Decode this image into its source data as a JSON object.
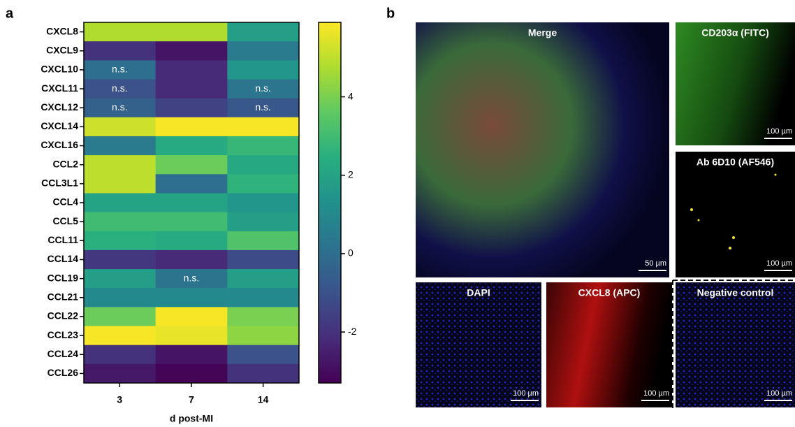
{
  "panel_labels": [
    "a",
    "b"
  ],
  "chart_data": {
    "type": "heatmap",
    "xlabel": "d post-MI",
    "categories": [
      "3",
      "7",
      "14"
    ],
    "rows": [
      "CXCL8",
      "CXCL9",
      "CXCL10",
      "CXCL11",
      "CXCL12",
      "CXCL14",
      "CXCL16",
      "CCL2",
      "CCL3L1",
      "CCL4",
      "CCL5",
      "CCL11",
      "CCL14",
      "CCL19",
      "CCL21",
      "CCL22",
      "CCL23",
      "CCL24",
      "CCL26"
    ],
    "values": [
      [
        4.8,
        4.8,
        1.8
      ],
      [
        -2,
        -2.8,
        0.5
      ],
      [
        0,
        -2.2,
        1.5
      ],
      [
        -1,
        -2.2,
        0.3
      ],
      [
        -0.5,
        -1.5,
        -0.8
      ],
      [
        5.2,
        5.8,
        5.8
      ],
      [
        0.5,
        2.3,
        2.8
      ],
      [
        5,
        3.8,
        2.2
      ],
      [
        5,
        0,
        2.6
      ],
      [
        2,
        2,
        1.5
      ],
      [
        3,
        3,
        1.8
      ],
      [
        2.5,
        2.3,
        3.3
      ],
      [
        -1.8,
        -2.2,
        -1.2
      ],
      [
        1.8,
        0.2,
        1.8
      ],
      [
        1,
        1,
        1
      ],
      [
        3.8,
        5.8,
        4
      ],
      [
        5.8,
        5.6,
        4.3
      ],
      [
        -2,
        -2.8,
        -1
      ],
      [
        -2.7,
        -3.2,
        -2
      ]
    ],
    "cell_labels": [
      [
        null,
        null,
        null
      ],
      [
        null,
        null,
        null
      ],
      [
        "n.s.",
        null,
        null
      ],
      [
        "n.s.",
        null,
        "n.s."
      ],
      [
        "n.s.",
        null,
        "n.s."
      ],
      [
        null,
        null,
        null
      ],
      [
        null,
        null,
        null
      ],
      [
        null,
        null,
        null
      ],
      [
        null,
        null,
        null
      ],
      [
        null,
        null,
        null
      ],
      [
        null,
        null,
        null
      ],
      [
        null,
        null,
        null
      ],
      [
        null,
        null,
        null
      ],
      [
        null,
        "n.s.",
        null
      ],
      [
        null,
        null,
        null
      ],
      [
        null,
        null,
        null
      ],
      [
        null,
        null,
        null
      ],
      [
        null,
        null,
        null
      ],
      [
        null,
        null,
        null
      ]
    ],
    "clim": [
      -3.3,
      5.9
    ],
    "cticks": [
      -2,
      0,
      2,
      4
    ],
    "colormap": [
      "#440154",
      "#472d7b",
      "#3b528b",
      "#2c728e",
      "#21918c",
      "#28ae80",
      "#5ec962",
      "#addc30",
      "#fde725"
    ]
  },
  "images": [
    {
      "title": "Merge",
      "scale_bar": "50 µm"
    },
    {
      "title": "CD203α (FITC)",
      "scale_bar": "100 µm"
    },
    {
      "title": "Ab 6D10 (AF546)",
      "scale_bar": "100 µm"
    },
    {
      "title": "DAPI",
      "scale_bar": "100 µm"
    },
    {
      "title": "CXCL8 (APC)",
      "scale_bar": "100 µm"
    },
    {
      "title": "Negative control",
      "scale_bar": "100 µm"
    }
  ]
}
